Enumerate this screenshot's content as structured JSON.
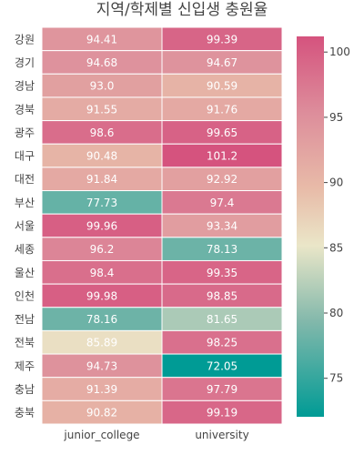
{
  "chart_data": {
    "type": "heatmap",
    "title": "지역/학제별 신입생 충원율",
    "columns": [
      "junior_college",
      "university"
    ],
    "rows": [
      "강원",
      "경기",
      "경남",
      "경북",
      "광주",
      "대구",
      "대전",
      "부산",
      "서울",
      "세종",
      "울산",
      "인천",
      "전남",
      "전북",
      "제주",
      "충남",
      "충북"
    ],
    "values": [
      [
        94.41,
        99.39
      ],
      [
        94.68,
        94.67
      ],
      [
        93.0,
        90.59
      ],
      [
        91.55,
        91.76
      ],
      [
        98.6,
        99.65
      ],
      [
        90.48,
        101.2
      ],
      [
        91.84,
        92.92
      ],
      [
        77.73,
        97.4
      ],
      [
        99.96,
        93.34
      ],
      [
        96.2,
        78.13
      ],
      [
        98.4,
        99.35
      ],
      [
        99.98,
        98.85
      ],
      [
        78.16,
        81.65
      ],
      [
        85.89,
        98.25
      ],
      [
        94.73,
        72.05
      ],
      [
        91.39,
        97.79
      ],
      [
        90.82,
        99.19
      ]
    ],
    "value_labels": [
      [
        "94.41",
        "99.39"
      ],
      [
        "94.68",
        "94.67"
      ],
      [
        "93.0",
        "90.59"
      ],
      [
        "91.55",
        "91.76"
      ],
      [
        "98.6",
        "99.65"
      ],
      [
        "90.48",
        "101.2"
      ],
      [
        "91.84",
        "92.92"
      ],
      [
        "77.73",
        "97.4"
      ],
      [
        "99.96",
        "93.34"
      ],
      [
        "96.2",
        "78.13"
      ],
      [
        "98.4",
        "99.35"
      ],
      [
        "99.98",
        "98.85"
      ],
      [
        "78.16",
        "81.65"
      ],
      [
        "85.89",
        "98.25"
      ],
      [
        "94.73",
        "72.05"
      ],
      [
        "91.39",
        "97.79"
      ],
      [
        "90.82",
        "99.19"
      ]
    ],
    "zmin": 72.05,
    "zmax": 101.2,
    "colorscale": [
      [
        0.0,
        "#009b95"
      ],
      [
        0.25,
        "#82b8ab"
      ],
      [
        0.45,
        "#eae6c8"
      ],
      [
        0.6,
        "#e8bba8"
      ],
      [
        0.8,
        "#dd8d9b"
      ],
      [
        1.0,
        "#d5537e"
      ]
    ],
    "colorbar_ticks": [
      75,
      80,
      85,
      90,
      95,
      100
    ]
  }
}
